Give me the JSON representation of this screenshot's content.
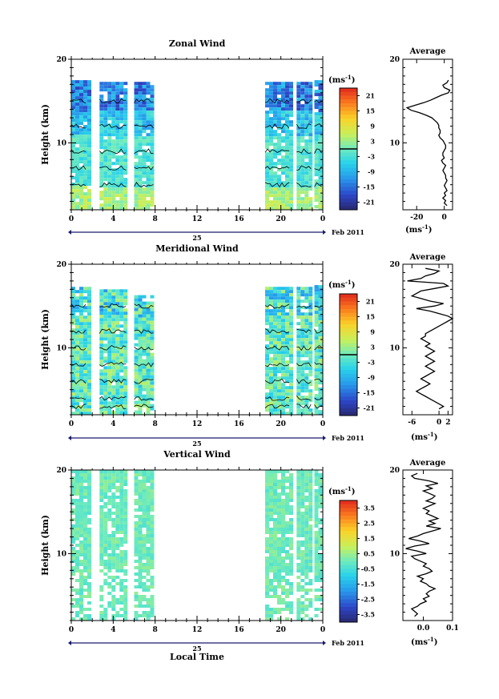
{
  "chart_data": [
    {
      "type": "heatmap",
      "title": "Zonal Wind",
      "ylabel": "Height (km)",
      "xlabel": "",
      "ylim": [
        2,
        20
      ],
      "y_ticks": [
        20,
        10
      ],
      "x_ticks": [
        "0",
        "4",
        "8",
        "12",
        "16",
        "20",
        "0"
      ],
      "xlim": [
        0,
        24
      ],
      "date_label": "25",
      "month_label": "Feb 2011",
      "colorbar": {
        "unit": "(ms",
        "unit_sup": "-1",
        "unit_close": ")",
        "ticks": [
          "21",
          "15",
          "9",
          "3",
          "-3",
          "-9",
          "-15",
          "-21"
        ],
        "range": [
          -24,
          24
        ],
        "zero_line": 0
      },
      "data_blocks": [
        {
          "x": [
            0,
            1.6
          ],
          "height_top": 17.5
        },
        {
          "x": [
            2.7,
            5.3
          ],
          "height_top": 17.3
        },
        {
          "x": [
            6.0,
            7.9
          ],
          "height_top": 17.3
        },
        {
          "x": [
            18.5,
            21.0
          ],
          "height_top": 17.3
        },
        {
          "x": [
            21.5,
            23.0
          ],
          "height_top": 17.3
        },
        {
          "x": [
            23.2,
            24.0
          ],
          "height_top": 17.5
        }
      ],
      "profile": {
        "title": "Average",
        "xlabel": "(ms",
        "xlabel_sup": "-1",
        "xlabel_close": ")",
        "x_ticks": [
          "-20",
          "0"
        ],
        "x_tick_values": [
          -20,
          0
        ],
        "xlim": [
          -30,
          6
        ],
        "y_ticks": [
          "20",
          "10"
        ],
        "heights": [
          17.5,
          17.2,
          16.9,
          16.6,
          16.3,
          16.0,
          15.7,
          15.4,
          15.1,
          14.8,
          14.5,
          14.2,
          13.9,
          13.6,
          13.3,
          13.0,
          12.7,
          12.4,
          12.1,
          11.8,
          11.5,
          11.2,
          10.9,
          10.6,
          10.3,
          10.0,
          9.7,
          9.4,
          9.1,
          8.8,
          8.5,
          8.2,
          7.9,
          7.6,
          7.3,
          7.0,
          6.7,
          6.4,
          6.1,
          5.8,
          5.5,
          5.2,
          4.9,
          4.6,
          4.3,
          4.0,
          3.7,
          3.4,
          3.1,
          2.8,
          2.5
        ],
        "values": [
          3,
          2,
          -1,
          0,
          4,
          3,
          -2,
          -6,
          -10,
          -15,
          -21,
          -27,
          -24,
          -18,
          -13,
          -9,
          -7,
          -5,
          -4,
          -4,
          -3,
          -3,
          -4,
          -3,
          -1,
          0,
          1,
          1,
          0,
          -1,
          -1,
          0,
          -2,
          -1,
          1,
          0,
          -1,
          0,
          1,
          1,
          2,
          1,
          0,
          1,
          2,
          0,
          1,
          -1,
          1,
          0,
          2
        ]
      }
    },
    {
      "type": "heatmap",
      "title": "Meridional Wind",
      "ylabel": "Height (km)",
      "xlabel": "",
      "ylim": [
        2,
        20
      ],
      "y_ticks": [
        20,
        10
      ],
      "x_ticks": [
        "0",
        "4",
        "8",
        "12",
        "16",
        "20",
        "0"
      ],
      "xlim": [
        0,
        24
      ],
      "date_label": "25",
      "month_label": "Feb 2011",
      "colorbar": {
        "unit": "(ms",
        "unit_sup": "-1",
        "unit_close": ")",
        "ticks": [
          "21",
          "15",
          "9",
          "3",
          "-3",
          "-9",
          "-15",
          "-21"
        ],
        "range": [
          -24,
          24
        ],
        "zero_line": 0
      },
      "data_blocks": [
        {
          "x": [
            0,
            1.6
          ],
          "height_top": 17.3
        },
        {
          "x": [
            2.7,
            5.3
          ],
          "height_top": 17.0
        },
        {
          "x": [
            6.0,
            7.9
          ],
          "height_top": 16.3
        },
        {
          "x": [
            18.5,
            21.0
          ],
          "height_top": 17.3
        },
        {
          "x": [
            21.5,
            23.0
          ],
          "height_top": 17.3
        },
        {
          "x": [
            23.2,
            24.0
          ],
          "height_top": 17.5
        }
      ],
      "profile": {
        "title": "Average",
        "xlabel": "(ms",
        "xlabel_sup": "-1",
        "xlabel_close": ")",
        "x_ticks": [
          "-6",
          "0",
          "2"
        ],
        "x_tick_values": [
          -6,
          0,
          2
        ],
        "xlim": [
          -8,
          3
        ],
        "y_ticks": [
          "20",
          "10"
        ],
        "heights": [
          19.5,
          19.2,
          18.9,
          18.6,
          18.3,
          18.0,
          17.7,
          17.4,
          17.1,
          16.8,
          16.5,
          16.2,
          15.9,
          15.6,
          15.3,
          15.0,
          14.7,
          14.4,
          14.1,
          13.8,
          13.5,
          13.2,
          12.9,
          12.6,
          12.3,
          12.0,
          11.7,
          11.4,
          11.1,
          10.8,
          10.5,
          10.2,
          9.9,
          9.6,
          9.3,
          9.0,
          8.7,
          8.4,
          8.1,
          7.8,
          7.5,
          7.2,
          6.9,
          6.6,
          6.3,
          6.0,
          5.7,
          5.4,
          5.1,
          4.8,
          4.5,
          4.2,
          3.9,
          3.6,
          3.3,
          3.0,
          2.7
        ],
        "values": [
          -3,
          0,
          -1,
          -3,
          -4,
          -7,
          1,
          2,
          -1,
          -4,
          -5,
          -6,
          -4,
          -2,
          1,
          -1,
          -5,
          -2,
          0,
          2,
          3,
          2,
          1,
          0,
          -1,
          -2,
          -3,
          -3,
          -4,
          -3,
          -2,
          -3,
          -2,
          -1,
          -2,
          -3,
          -2,
          -1,
          -2,
          -3,
          -2,
          -1,
          -2,
          -3,
          -4,
          -3,
          -2,
          -3,
          -4,
          -5,
          -4,
          -3,
          -2,
          -1,
          0,
          1,
          0
        ]
      }
    },
    {
      "type": "heatmap",
      "title": "Vertical Wind",
      "ylabel": "Height (km)",
      "xlabel": "Local Time",
      "ylim": [
        2,
        20
      ],
      "y_ticks": [
        20,
        10
      ],
      "x_ticks": [
        "0",
        "4",
        "8",
        "12",
        "16",
        "20",
        "0"
      ],
      "xlim": [
        0,
        24
      ],
      "date_label": "25",
      "month_label": "Feb 2011",
      "colorbar": {
        "unit": "(ms",
        "unit_sup": "-1",
        "unit_close": ")",
        "ticks": [
          "3.5",
          "2.5",
          "1.5",
          "0.5",
          "-0.5",
          "-1.5",
          "-2.5",
          "-3.5"
        ],
        "range": [
          -4,
          4
        ],
        "zero_line": null
      },
      "data_blocks": [
        {
          "x": [
            0,
            1.6
          ],
          "height_top": 20
        },
        {
          "x": [
            2.7,
            5.3
          ],
          "height_top": 20
        },
        {
          "x": [
            6.0,
            7.9
          ],
          "height_top": 20
        },
        {
          "x": [
            18.5,
            21.0
          ],
          "height_top": 20
        },
        {
          "x": [
            21.5,
            23.0
          ],
          "height_top": 20
        },
        {
          "x": [
            23.2,
            24.0
          ],
          "height_top": 20
        }
      ],
      "profile": {
        "title": "Average",
        "xlabel": "(ms",
        "xlabel_sup": "-1",
        "xlabel_close": ")",
        "x_ticks": [
          "0.0",
          "0.1"
        ],
        "x_tick_values": [
          0.0,
          0.1
        ],
        "xlim": [
          -0.07,
          0.1
        ],
        "y_ticks": [
          "20",
          "10"
        ],
        "heights": [
          19.6,
          19.3,
          19.0,
          18.7,
          18.4,
          18.1,
          17.8,
          17.5,
          17.2,
          16.9,
          16.6,
          16.3,
          16.0,
          15.7,
          15.4,
          15.1,
          14.8,
          14.5,
          14.2,
          13.9,
          13.6,
          13.3,
          13.0,
          12.7,
          12.4,
          12.1,
          11.8,
          11.5,
          11.2,
          10.9,
          10.6,
          10.3,
          10.0,
          9.7,
          9.4,
          9.1,
          8.8,
          8.5,
          8.2,
          7.9,
          7.6,
          7.3,
          7.0,
          6.7,
          6.4,
          6.1,
          5.8,
          5.5,
          5.2,
          4.9,
          4.6,
          4.3,
          4.0,
          3.7,
          3.4,
          3.1,
          2.8,
          2.5
        ],
        "values": [
          -0.02,
          -0.04,
          -0.03,
          0.02,
          0.05,
          0.01,
          0.03,
          0.0,
          0.02,
          0.04,
          0.03,
          0.01,
          0.04,
          0.02,
          0.0,
          0.02,
          0.01,
          0.03,
          0.05,
          0.02,
          0.04,
          0.01,
          0.06,
          0.03,
          0.0,
          -0.02,
          -0.05,
          -0.01,
          0.02,
          -0.03,
          -0.06,
          -0.02,
          0.01,
          -0.04,
          -0.03,
          -0.01,
          0.01,
          0.0,
          0.02,
          0.03,
          0.01,
          -0.02,
          0.0,
          -0.01,
          0.01,
          0.02,
          0.04,
          0.02,
          0.01,
          0.02,
          0.0,
          0.01,
          -0.01,
          -0.02,
          -0.04,
          -0.03,
          -0.02,
          -0.03
        ]
      }
    }
  ]
}
